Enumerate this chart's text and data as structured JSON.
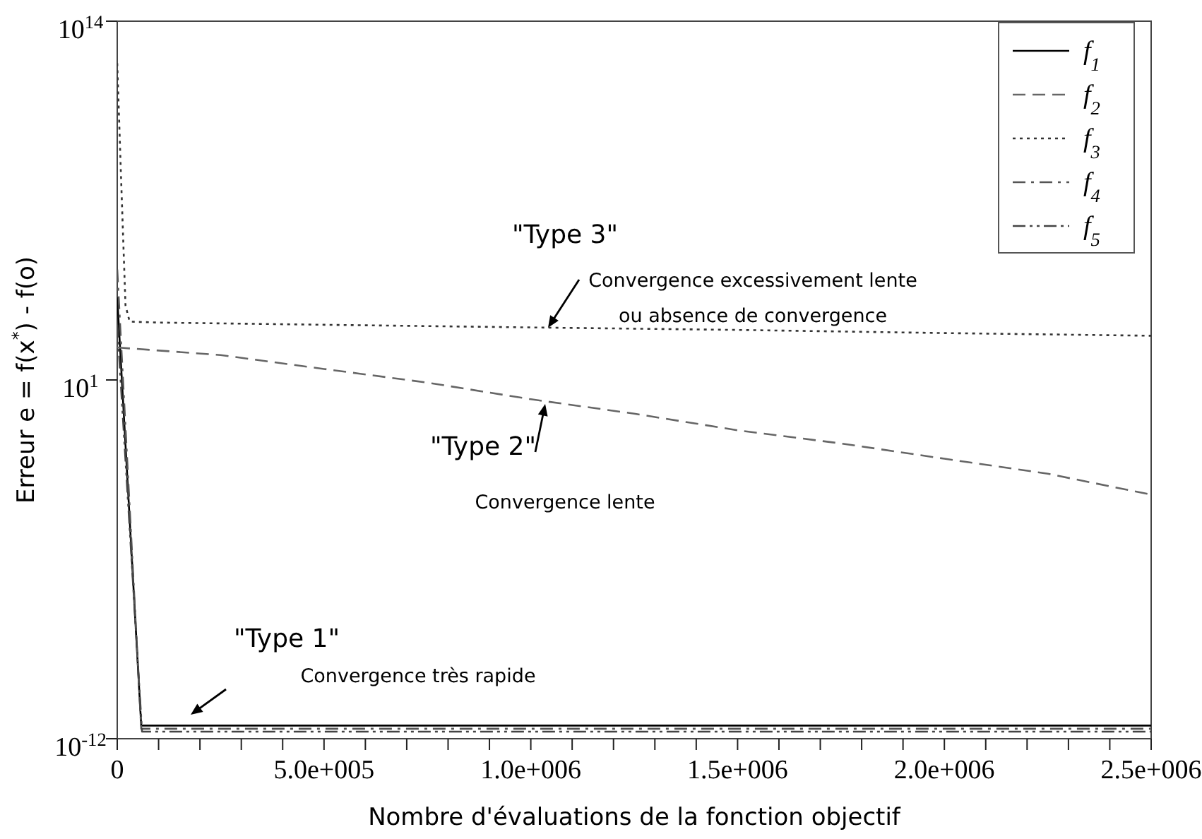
{
  "chart_data": {
    "type": "line",
    "xlabel": "Nombre d'évaluations de la fonction objectif",
    "ylabel": "Erreur e = f(x$^{*}$) - f(o)",
    "log": "y",
    "xlim": [
      0,
      2500000
    ],
    "ylim": [
      1e-12,
      100000000000000.0
    ],
    "xticks": [
      0,
      {
        "value": 100000,
        "label": null
      },
      {
        "value": 200000,
        "label": null
      },
      {
        "value": 300000,
        "label": null
      },
      {
        "value": 400000,
        "label": null
      },
      {
        "value": 500000,
        "label": "5.0e+005"
      },
      {
        "value": 600000,
        "label": null
      },
      {
        "value": 700000,
        "label": null
      },
      {
        "value": 800000,
        "label": null
      },
      {
        "value": 900000,
        "label": null
      },
      {
        "value": 1000000,
        "label": "1.0e+006"
      },
      {
        "value": 1100000,
        "label": null
      },
      {
        "value": 1200000,
        "label": null
      },
      {
        "value": 1300000,
        "label": null
      },
      {
        "value": 1400000,
        "label": null
      },
      {
        "value": 1500000,
        "label": "1.5e+006"
      },
      {
        "value": 1600000,
        "label": null
      },
      {
        "value": 1700000,
        "label": null
      },
      {
        "value": 1800000,
        "label": null
      },
      {
        "value": 1900000,
        "label": null
      },
      {
        "value": 2000000,
        "label": "2.0e+006"
      },
      {
        "value": 2100000,
        "label": null
      },
      {
        "value": 2200000,
        "label": null
      },
      {
        "value": 2300000,
        "label": null
      },
      {
        "value": 2400000,
        "label": null
      },
      {
        "value": 2500000,
        "label": "2.5e+006"
      }
    ],
    "yticks": [
      {
        "value": 1e-12,
        "label": "10$^{-12}$"
      },
      {
        "value": 10,
        "label": "10$^{1}$"
      },
      {
        "value": 100000000000000.0,
        "label": "10$^{14}$"
      }
    ],
    "legend": "top right",
    "grid": false,
    "marker": "none",
    "series": [
      {
        "name": "f$_{1}$",
        "color": "#000000",
        "line_style": "solid",
        "x": [
          0,
          58000,
          2500000
        ],
        "values": [
          10000,
          3e-12,
          3e-12
        ]
      },
      {
        "name": "f$_{2}$",
        "color": "#666666",
        "line_style": "dashed",
        "x": [
          0,
          250000,
          500000,
          750000,
          1000000,
          1250000,
          1500000,
          1750000,
          2000000,
          2250000,
          2500000
        ],
        "values": [
          150,
          80,
          25,
          8,
          2,
          0.6,
          0.15,
          0.05,
          0.014,
          0.004,
          0.0007
        ]
      },
      {
        "name": "f$_{3}$",
        "color": "#333333",
        "line_style": "dotted",
        "x": [
          0,
          10000,
          20000,
          30000,
          100000,
          500000,
          1000000,
          1500000,
          2000000,
          2500000
        ],
        "values": [
          3000000000000.0,
          100000000.0,
          5000,
          1300,
          1200,
          1000,
          800,
          650,
          500,
          400
        ]
      },
      {
        "name": "f$_{4}$",
        "color": "#555555",
        "line_style": "dashdot",
        "x": [
          0,
          58000,
          2500000
        ],
        "values": [
          100000,
          2.3e-12,
          2.3e-12
        ]
      },
      {
        "name": "f$_{5}$",
        "color": "#444444",
        "line_style": "dashdotdot",
        "x": [
          0,
          60000,
          2500000
        ],
        "values": [
          1000,
          1.8e-12,
          1.8e-12
        ]
      }
    ],
    "annotations": [
      "\"Type 3\"\nConvergence excessivement lente\nou absence de convergence",
      "\"Type 2\"\nConvergence lente",
      "\"Type 1\"\nConvergence très rapide"
    ]
  }
}
